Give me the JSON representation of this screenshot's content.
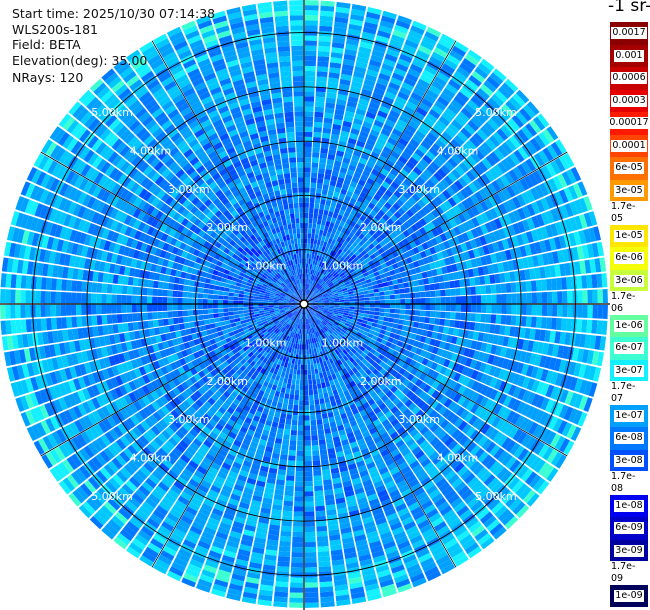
{
  "header": {
    "start_time": "Start time: 2025/10/30 07:14:38",
    "instrument": "WLS200s-181",
    "field": "Field: BETA",
    "elevation": "Elevation(deg): 35.00",
    "nrays": "NRays: 120"
  },
  "colorbar": {
    "unit_label": "-1 sr-",
    "ticks": [
      "0.0017",
      "0.001",
      "0.0006",
      "0.0003",
      "0.00017",
      "0.0001",
      "6e-05",
      "3e-05",
      "1.7e-05",
      "1e-05",
      "6e-06",
      "3e-06",
      "1.7e-06",
      "1e-06",
      "6e-07",
      "3e-07",
      "1.7e-07",
      "1e-07",
      "6e-08",
      "3e-08",
      "1.7e-08",
      "1e-08",
      "6e-09",
      "3e-09",
      "1.7e-09",
      "1e-09"
    ],
    "colors": [
      "#8b0000",
      "#a40000",
      "#c80000",
      "#e60000",
      "#ff1a00",
      "#ff4500",
      "#ff7000",
      "#ff9900",
      "#ffc000",
      "#ffe600",
      "#f5ff0a",
      "#c8ff3c",
      "#96ff6e",
      "#64ffa0",
      "#3cffd2",
      "#14f0ff",
      "#00c8ff",
      "#00a0ff",
      "#0078ff",
      "#0050ff",
      "#0028ff",
      "#0000f0",
      "#0000c8",
      "#0000a0",
      "#000078",
      "#00005a"
    ]
  },
  "chart_data": {
    "type": "heatmap",
    "projection": "polar (PPI)",
    "field": "BETA",
    "elevation_deg": 35.0,
    "n_rays": 120,
    "range_rings_km": [
      1,
      2,
      3,
      4,
      5
    ],
    "range_labels": [
      "1.00km",
      "2.00km",
      "3.00km",
      "4.00km",
      "5.00km"
    ],
    "max_range_km": 5.6,
    "color_scale": "log",
    "value_range": [
      1e-09,
      0.0017
    ],
    "typical_value_near_site": "1e-08 to 6e-08",
    "typical_value_far_range": "6e-08 to 1.7e-07",
    "max_observed_edge_value": "3e-07"
  }
}
